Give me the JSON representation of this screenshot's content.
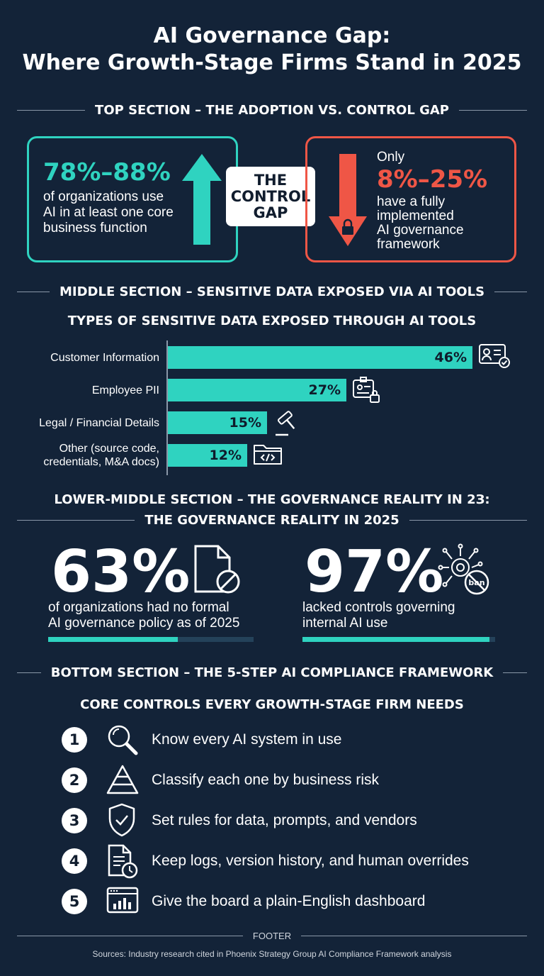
{
  "title": {
    "line1": "AI Governance Gap:",
    "line2": "Where Growth-Stage Firms Stand in 2025"
  },
  "top_section": {
    "heading": "TOP SECTION – THE ADOPTION VS. CONTROL GAP",
    "adoption": {
      "value": "78%–88%",
      "text_lines": [
        "of organizations use",
        "AI in at least one core",
        "business function"
      ]
    },
    "badge_lines": [
      "THE",
      "CONTROL",
      "GAP"
    ],
    "governance": {
      "prefix": "Only",
      "value": "8%–25%",
      "text_lines": [
        "have a fully",
        "implemented",
        "AI governance",
        "framework"
      ]
    }
  },
  "middle_section": {
    "heading": "MIDDLE SECTION – SENSITIVE DATA EXPOSED VIA AI TOOLS",
    "chart_title": "TYPES OF SENSITIVE DATA EXPOSED THROUGH AI TOOLS"
  },
  "chart_data": {
    "type": "bar",
    "orientation": "horizontal",
    "title": "TYPES OF SENSITIVE DATA EXPOSED THROUGH AI TOOLS",
    "categories": [
      [
        "Customer Information"
      ],
      [
        "Employee PII"
      ],
      [
        "Legal / Financial Details"
      ],
      [
        "Other (source code,",
        "credentials, M&A docs)"
      ]
    ],
    "values": [
      46,
      27,
      15,
      12
    ],
    "value_labels": [
      "46%",
      "27%",
      "15%",
      "12%"
    ],
    "icons": [
      "id-card-check-icon",
      "id-badge-lock-icon",
      "gavel-icon",
      "code-folder-icon"
    ],
    "xlim": [
      0,
      46
    ],
    "grid": false,
    "bar_color": "#2fd3c0"
  },
  "lower_middle_section": {
    "heading_line1": "LOWER-MIDDLE SECTION – THE GOVERNANCE REALITY IN 2З:",
    "heading_line2": "THE GOVERNANCE REALITY IN 2025",
    "stats": [
      {
        "value": "63%",
        "fraction": 0.63,
        "text_lines": [
          "of organizations had no formal",
          "AI governance policy as of 2025"
        ],
        "icon": "document-prohibited-icon"
      },
      {
        "value": "97%",
        "fraction": 0.97,
        "text_lines": [
          "lacked controls governing",
          "internal AI use"
        ],
        "icon": "gear-network-ban-icon",
        "icon_text": "ban"
      }
    ]
  },
  "bottom_section": {
    "heading": "BOTTOM SECTION – THE 5-STEP AI COMPLIANCE FRAMEWORK",
    "subtitle": "CORE CONTROLS EVERY GROWTH-STAGE FIRM NEEDS",
    "steps": [
      {
        "num": "1",
        "text": "Know every AI system in use",
        "icon": "magnifier-icon"
      },
      {
        "num": "2",
        "text": "Classify each one by business risk",
        "icon": "pyramid-icon"
      },
      {
        "num": "3",
        "text": "Set rules for data, prompts, and vendors",
        "icon": "shield-check-icon"
      },
      {
        "num": "4",
        "text": "Keep logs, version history, and human overrides",
        "icon": "document-clock-icon"
      },
      {
        "num": "5",
        "text": "Give the board a plain-English dashboard",
        "icon": "dashboard-icon"
      }
    ]
  },
  "footer": {
    "label": "FOOTER",
    "sources": "Sources: Industry research cited in Phoenix Strategy Group AI Compliance Framework analysis"
  },
  "colors": {
    "background": "#132338",
    "teal": "#2fd3c0",
    "red": "#ef5646",
    "white": "#ffffff"
  }
}
